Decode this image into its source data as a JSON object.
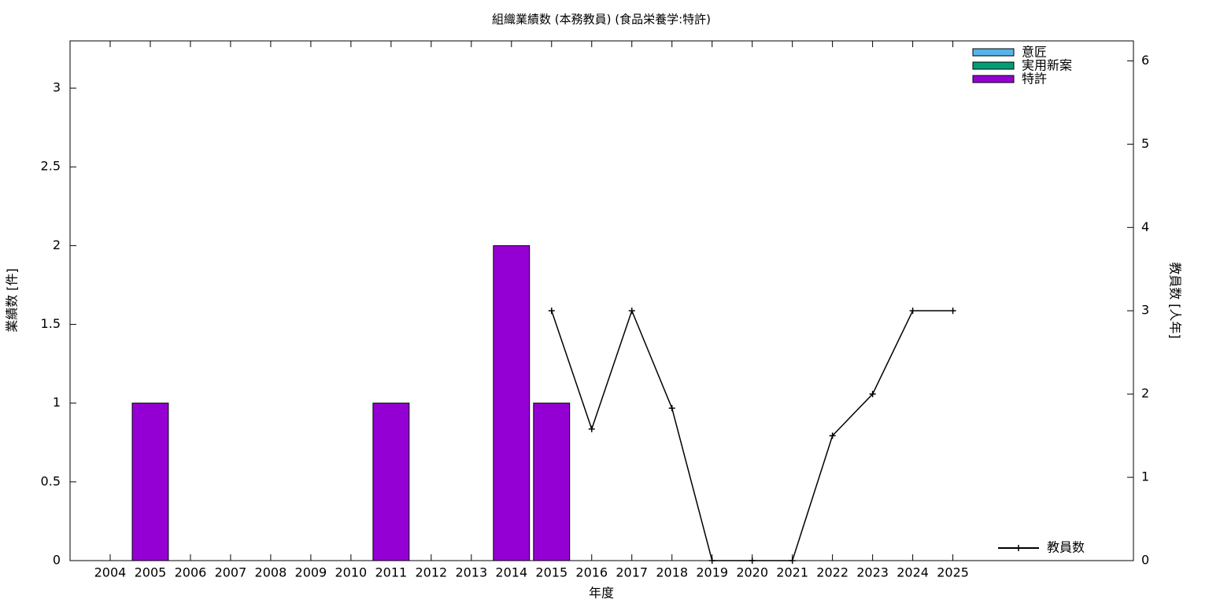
{
  "chart_data": {
    "type": "bar",
    "title": "組織業績数 (本務教員) (食品栄養学:特許)",
    "xlabel": "年度",
    "ylabel": "業績数 [件]",
    "y2label": "教員数 [人年]",
    "stacked": true,
    "x": [
      2004,
      2005,
      2006,
      2007,
      2008,
      2009,
      2010,
      2011,
      2012,
      2013,
      2014,
      2015,
      2016,
      2017,
      2018,
      2019,
      2020,
      2021,
      2022,
      2023,
      2024,
      2025
    ],
    "xlim": [
      2003,
      2029.5
    ],
    "xticks": [
      2004,
      2005,
      2006,
      2007,
      2008,
      2009,
      2010,
      2011,
      2012,
      2013,
      2014,
      2015,
      2016,
      2017,
      2018,
      2019,
      2020,
      2021,
      2022,
      2023,
      2024,
      2025
    ],
    "ylim": [
      0,
      3.3
    ],
    "yticks": [
      0,
      0.5,
      1,
      1.5,
      2,
      2.5,
      3
    ],
    "y2lim": [
      0,
      6.24
    ],
    "y2ticks": [
      0,
      1,
      2,
      3,
      4,
      5,
      6
    ],
    "series": [
      {
        "name": "意匠",
        "color": "#56b4e9",
        "values": [
          0,
          0,
          0,
          0,
          0,
          0,
          0,
          0,
          0,
          0,
          0,
          0,
          0,
          0,
          0,
          0,
          0,
          0,
          0,
          0,
          0,
          0
        ]
      },
      {
        "name": "実用新案",
        "color": "#009e73",
        "values": [
          0,
          0,
          0,
          0,
          0,
          0,
          0,
          0,
          0,
          0,
          0,
          0,
          0,
          0,
          0,
          0,
          0,
          0,
          0,
          0,
          0,
          0
        ]
      },
      {
        "name": "特許",
        "color": "#9400d3",
        "values": [
          0,
          1,
          0,
          0,
          0,
          0,
          0,
          1,
          0,
          0,
          2,
          1,
          0,
          0,
          0,
          0,
          0,
          0,
          0,
          0,
          0,
          0
        ]
      },
      {
        "name": "教員数",
        "type": "line",
        "axis": "y2",
        "color": "#000000",
        "values": [
          null,
          null,
          null,
          null,
          null,
          null,
          null,
          null,
          null,
          null,
          null,
          3,
          1.58,
          3,
          1.83,
          0,
          0,
          0,
          1.5,
          2,
          3,
          3
        ]
      }
    ],
    "legend": "top-right"
  }
}
